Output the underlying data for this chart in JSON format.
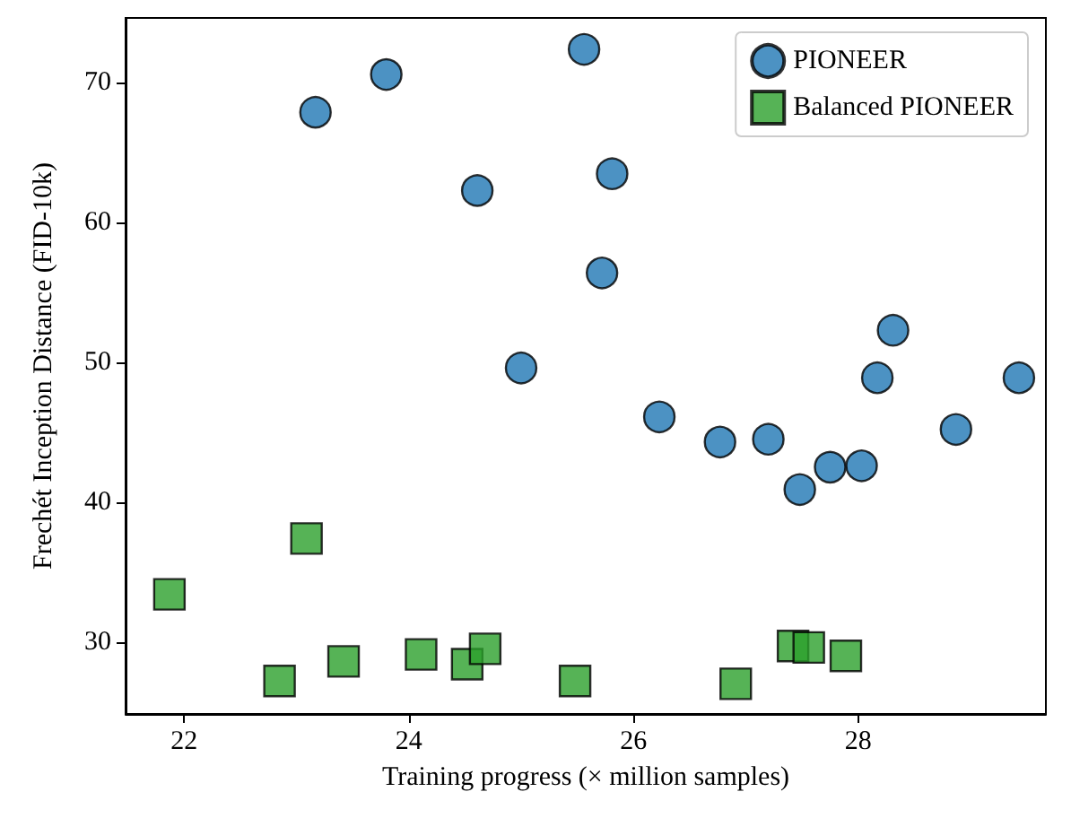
{
  "chart_data": {
    "type": "scatter",
    "xlabel": "Training progress (× million samples)",
    "ylabel": "Frechét Inception Distance (FID-10k)",
    "xlim": [
      21.48,
      29.67
    ],
    "ylim": [
      24.84,
      74.65
    ],
    "xticks": [
      22,
      24,
      26,
      28
    ],
    "yticks": [
      30,
      40,
      50,
      60,
      70
    ],
    "grid": false,
    "legend": "top right",
    "series": [
      {
        "name": "PIONEER",
        "color": "#1f77b4",
        "marker": "circle",
        "x": [
          23.17,
          23.8,
          24.61,
          25.0,
          25.56,
          25.81,
          25.72,
          26.23,
          26.77,
          27.2,
          27.48,
          27.75,
          28.03,
          28.17,
          28.31,
          28.87,
          29.43
        ],
        "values": [
          67.9,
          70.6,
          62.3,
          49.6,
          72.4,
          63.5,
          56.4,
          46.1,
          44.3,
          44.5,
          40.9,
          42.5,
          42.6,
          48.9,
          52.3,
          45.2,
          48.9
        ]
      },
      {
        "name": "Balanced PIONEER",
        "color": "#2ca02c",
        "marker": "square",
        "x": [
          21.87,
          22.85,
          23.09,
          23.42,
          24.11,
          24.52,
          24.68,
          25.48,
          26.91,
          27.42,
          27.56,
          27.89
        ],
        "values": [
          33.4,
          27.2,
          37.4,
          28.6,
          29.1,
          28.4,
          29.5,
          27.2,
          27.0,
          29.7,
          29.6,
          29.0
        ]
      }
    ]
  }
}
